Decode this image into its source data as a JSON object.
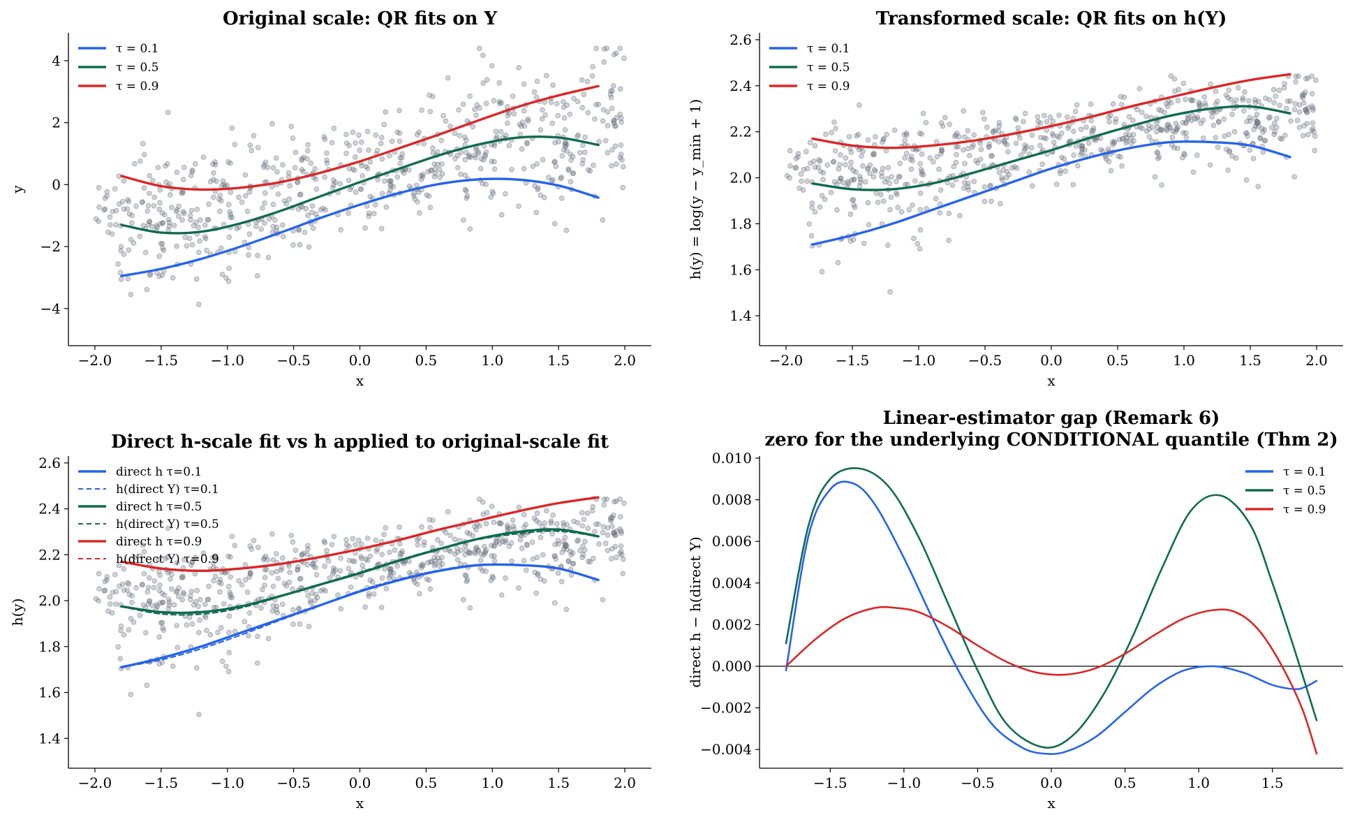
{
  "chart_data": [
    {
      "type": "scatter",
      "title": "Original scale: QR fits on Y",
      "xlabel": "x",
      "ylabel": "y",
      "xlim": [
        -2.2,
        2.2
      ],
      "ylim": [
        -5.2,
        4.9
      ],
      "xticks": [
        -2.0,
        -1.5,
        -1.0,
        -0.5,
        0.0,
        0.5,
        1.0,
        1.5,
        2.0
      ],
      "yticks": [
        -4,
        -2,
        0,
        2,
        4
      ],
      "xtick_labels": [
        "−2.0",
        "−1.5",
        "−1.0",
        "−0.5",
        "0.0",
        "0.5",
        "1.0",
        "1.5",
        "2.0"
      ],
      "ytick_labels": [
        "−4",
        "−2",
        "0",
        "2",
        "4"
      ],
      "legend_position": "upper-left",
      "scatter_color": "#6b7280",
      "series": [
        {
          "name": "τ = 0.1",
          "color": "#2563eb",
          "style": "solid",
          "x": [
            -1.8,
            -1.5,
            -1.2,
            -0.9,
            -0.6,
            -0.3,
            0.0,
            0.3,
            0.6,
            0.9,
            1.2,
            1.5,
            1.8
          ],
          "y": [
            -2.95,
            -2.72,
            -2.4,
            -2.0,
            -1.55,
            -1.08,
            -0.65,
            -0.27,
            0.02,
            0.17,
            0.16,
            -0.03,
            -0.42
          ]
        },
        {
          "name": "τ = 0.5",
          "color": "#0f6b4f",
          "style": "solid",
          "x": [
            -1.8,
            -1.5,
            -1.2,
            -0.9,
            -0.6,
            -0.3,
            0.0,
            0.3,
            0.6,
            0.9,
            1.2,
            1.5,
            1.8
          ],
          "y": [
            -1.3,
            -1.55,
            -1.52,
            -1.25,
            -0.85,
            -0.38,
            0.08,
            0.52,
            0.95,
            1.3,
            1.52,
            1.52,
            1.28
          ]
        },
        {
          "name": "τ = 0.9",
          "color": "#dc2626",
          "style": "solid",
          "x": [
            -1.8,
            -1.5,
            -1.2,
            -0.9,
            -0.6,
            -0.3,
            0.0,
            0.3,
            0.6,
            0.9,
            1.2,
            1.5,
            1.8
          ],
          "y": [
            0.28,
            -0.05,
            -0.16,
            -0.1,
            0.08,
            0.38,
            0.75,
            1.18,
            1.62,
            2.08,
            2.52,
            2.88,
            3.18
          ]
        }
      ]
    },
    {
      "type": "scatter",
      "title": "Transformed scale: QR fits on h(Y)",
      "xlabel": "x",
      "ylabel": "h(y) = log(y − y_min + 1)",
      "xlim": [
        -2.2,
        2.2
      ],
      "ylim": [
        1.27,
        2.63
      ],
      "xticks": [
        -2.0,
        -1.5,
        -1.0,
        -0.5,
        0.0,
        0.5,
        1.0,
        1.5,
        2.0
      ],
      "yticks": [
        1.4,
        1.6,
        1.8,
        2.0,
        2.2,
        2.4,
        2.6
      ],
      "xtick_labels": [
        "−2.0",
        "−1.5",
        "−1.0",
        "−0.5",
        "0.0",
        "0.5",
        "1.0",
        "1.5",
        "2.0"
      ],
      "ytick_labels": [
        "1.4",
        "1.6",
        "1.8",
        "2.0",
        "2.2",
        "2.4",
        "2.6"
      ],
      "legend_position": "upper-left",
      "scatter_color": "#6b7280",
      "series": [
        {
          "name": "τ = 0.1",
          "color": "#2563eb",
          "style": "solid",
          "x": [
            -1.8,
            -1.5,
            -1.2,
            -0.9,
            -0.6,
            -0.3,
            0.0,
            0.3,
            0.6,
            0.9,
            1.2,
            1.5,
            1.8
          ],
          "y": [
            1.71,
            1.75,
            1.8,
            1.86,
            1.92,
            1.98,
            2.04,
            2.09,
            2.13,
            2.155,
            2.155,
            2.14,
            2.09
          ]
        },
        {
          "name": "τ = 0.5",
          "color": "#0f6b4f",
          "style": "solid",
          "x": [
            -1.8,
            -1.5,
            -1.2,
            -0.9,
            -0.6,
            -0.3,
            0.0,
            0.3,
            0.6,
            0.9,
            1.2,
            1.5,
            1.8
          ],
          "y": [
            1.975,
            1.95,
            1.95,
            1.975,
            2.02,
            2.07,
            2.12,
            2.175,
            2.225,
            2.27,
            2.3,
            2.31,
            2.28
          ]
        },
        {
          "name": "τ = 0.9",
          "color": "#dc2626",
          "style": "solid",
          "x": [
            -1.8,
            -1.5,
            -1.2,
            -0.9,
            -0.6,
            -0.3,
            0.0,
            0.3,
            0.6,
            0.9,
            1.2,
            1.5,
            1.8
          ],
          "y": [
            2.17,
            2.14,
            2.13,
            2.14,
            2.16,
            2.19,
            2.225,
            2.265,
            2.31,
            2.35,
            2.39,
            2.425,
            2.45
          ]
        }
      ]
    },
    {
      "type": "scatter",
      "title": "Direct h-scale fit  vs  h applied to original-scale fit",
      "xlabel": "x",
      "ylabel": "h(y)",
      "xlim": [
        -2.2,
        2.2
      ],
      "ylim": [
        1.27,
        2.63
      ],
      "xticks": [
        -2.0,
        -1.5,
        -1.0,
        -0.5,
        0.0,
        0.5,
        1.0,
        1.5,
        2.0
      ],
      "yticks": [
        1.4,
        1.6,
        1.8,
        2.0,
        2.2,
        2.4,
        2.6
      ],
      "xtick_labels": [
        "−2.0",
        "−1.5",
        "−1.0",
        "−0.5",
        "0.0",
        "0.5",
        "1.0",
        "1.5",
        "2.0"
      ],
      "ytick_labels": [
        "1.4",
        "1.6",
        "1.8",
        "2.0",
        "2.2",
        "2.4",
        "2.6"
      ],
      "legend_position": "upper-left",
      "scatter_color": "#6b7280",
      "series": [
        {
          "name": "direct h τ=0.1",
          "color": "#2563eb",
          "style": "solid",
          "x": [
            -1.8,
            -1.5,
            -1.2,
            -0.9,
            -0.6,
            -0.3,
            0.0,
            0.3,
            0.6,
            0.9,
            1.2,
            1.5,
            1.8
          ],
          "y": [
            1.71,
            1.75,
            1.8,
            1.86,
            1.92,
            1.98,
            2.04,
            2.09,
            2.13,
            2.155,
            2.155,
            2.14,
            2.09
          ]
        },
        {
          "name": "h(direct Y) τ=0.1",
          "color": "#2563eb",
          "style": "dashed",
          "x": [
            -1.8,
            -1.5,
            -1.2,
            -0.9,
            -0.6,
            -0.3,
            0.0,
            0.3,
            0.6,
            0.9,
            1.2,
            1.5,
            1.8
          ],
          "y": [
            1.71,
            1.742,
            1.79,
            1.85,
            1.915,
            1.978,
            2.044,
            2.094,
            2.133,
            2.157,
            2.155,
            2.141,
            2.091
          ]
        },
        {
          "name": "direct h τ=0.5",
          "color": "#0f6b4f",
          "style": "solid",
          "x": [
            -1.8,
            -1.5,
            -1.2,
            -0.9,
            -0.6,
            -0.3,
            0.0,
            0.3,
            0.6,
            0.9,
            1.2,
            1.5,
            1.8
          ],
          "y": [
            1.975,
            1.95,
            1.95,
            1.975,
            2.02,
            2.07,
            2.12,
            2.175,
            2.225,
            2.27,
            2.3,
            2.31,
            2.28
          ]
        },
        {
          "name": "h(direct Y) τ=0.5",
          "color": "#0f6b4f",
          "style": "dashed",
          "x": [
            -1.8,
            -1.5,
            -1.2,
            -0.9,
            -0.6,
            -0.3,
            0.0,
            0.3,
            0.6,
            0.9,
            1.2,
            1.5,
            1.8
          ],
          "y": [
            1.974,
            1.942,
            1.941,
            1.968,
            2.018,
            2.071,
            2.124,
            2.178,
            2.227,
            2.267,
            2.292,
            2.303,
            2.279
          ]
        },
        {
          "name": "direct h τ=0.9",
          "color": "#dc2626",
          "style": "solid",
          "x": [
            -1.8,
            -1.5,
            -1.2,
            -0.9,
            -0.6,
            -0.3,
            0.0,
            0.3,
            0.6,
            0.9,
            1.2,
            1.5,
            1.8
          ],
          "y": [
            2.17,
            2.14,
            2.13,
            2.14,
            2.16,
            2.19,
            2.225,
            2.265,
            2.31,
            2.35,
            2.39,
            2.425,
            2.45
          ]
        },
        {
          "name": "h(direct Y) τ=0.9",
          "color": "#dc2626",
          "style": "dashed",
          "x": [
            -1.8,
            -1.5,
            -1.2,
            -0.9,
            -0.6,
            -0.3,
            0.0,
            0.3,
            0.6,
            0.9,
            1.2,
            1.5,
            1.8
          ],
          "y": [
            2.17,
            2.138,
            2.128,
            2.138,
            2.158,
            2.189,
            2.225,
            2.265,
            2.309,
            2.348,
            2.388,
            2.424,
            2.454
          ]
        }
      ]
    },
    {
      "type": "line",
      "title": "Linear-estimator gap  (Remark 6)",
      "subtitle": "zero for the underlying CONDITIONAL quantile (Thm 2)",
      "xlabel": "x",
      "ylabel": "direct h − h(direct Y)",
      "xlim": [
        -1.98,
        1.98
      ],
      "ylim": [
        -0.0049,
        0.0101
      ],
      "xticks": [
        -1.5,
        -1.0,
        -0.5,
        0.0,
        0.5,
        1.0,
        1.5
      ],
      "yticks": [
        -0.004,
        -0.002,
        0.0,
        0.002,
        0.004,
        0.006,
        0.008,
        0.01
      ],
      "xtick_labels": [
        "−1.5",
        "−1.0",
        "−0.5",
        "0.0",
        "0.5",
        "1.0",
        "1.5"
      ],
      "ytick_labels": [
        "−0.004",
        "−0.002",
        "0.000",
        "0.002",
        "0.004",
        "0.006",
        "0.008",
        "0.010"
      ],
      "reference_line_y": 0.0,
      "legend_position": "upper-right",
      "series": [
        {
          "name": "τ = 0.1",
          "color": "#2563eb",
          "style": "solid",
          "x": [
            -1.8,
            -1.65,
            -1.5,
            -1.35,
            -1.2,
            -1.0,
            -0.8,
            -0.6,
            -0.4,
            -0.2,
            -0.05,
            0.1,
            0.3,
            0.5,
            0.7,
            0.9,
            1.1,
            1.3,
            1.5,
            1.65,
            1.72,
            1.8
          ],
          "y": [
            -0.0002,
            0.0062,
            0.0085,
            0.0088,
            0.0078,
            0.0052,
            0.0022,
            -0.0006,
            -0.0028,
            -0.0039,
            -0.0042,
            -0.0041,
            -0.0034,
            -0.0022,
            -0.001,
            -0.0002,
            0.0,
            -0.0003,
            -0.0009,
            -0.0011,
            -0.001,
            -0.0007
          ]
        },
        {
          "name": "τ = 0.5",
          "color": "#0f6b4f",
          "style": "solid",
          "x": [
            -1.8,
            -1.65,
            -1.5,
            -1.3,
            -1.1,
            -0.9,
            -0.7,
            -0.5,
            -0.3,
            -0.05,
            0.15,
            0.35,
            0.55,
            0.75,
            0.95,
            1.15,
            1.35,
            1.5,
            1.65,
            1.8
          ],
          "y": [
            0.0011,
            0.0067,
            0.009,
            0.0095,
            0.0086,
            0.0062,
            0.003,
            -0.0002,
            -0.0028,
            -0.0039,
            -0.0033,
            -0.0014,
            0.0014,
            0.0047,
            0.0075,
            0.0082,
            0.0068,
            0.004,
            0.0008,
            -0.0026
          ]
        },
        {
          "name": "τ = 0.9",
          "color": "#dc2626",
          "style": "solid",
          "x": [
            -1.8,
            -1.6,
            -1.4,
            -1.2,
            -1.05,
            -0.9,
            -0.7,
            -0.5,
            -0.3,
            -0.1,
            0.1,
            0.3,
            0.5,
            0.7,
            0.9,
            1.1,
            1.25,
            1.4,
            1.55,
            1.7,
            1.8
          ],
          "y": [
            0.0,
            0.0013,
            0.0023,
            0.0028,
            0.0028,
            0.0026,
            0.0019,
            0.001,
            0.0002,
            -0.0003,
            -0.0004,
            -0.0001,
            0.0006,
            0.0015,
            0.0023,
            0.0027,
            0.0026,
            0.0018,
            0.0002,
            -0.002,
            -0.0042
          ]
        }
      ]
    }
  ]
}
